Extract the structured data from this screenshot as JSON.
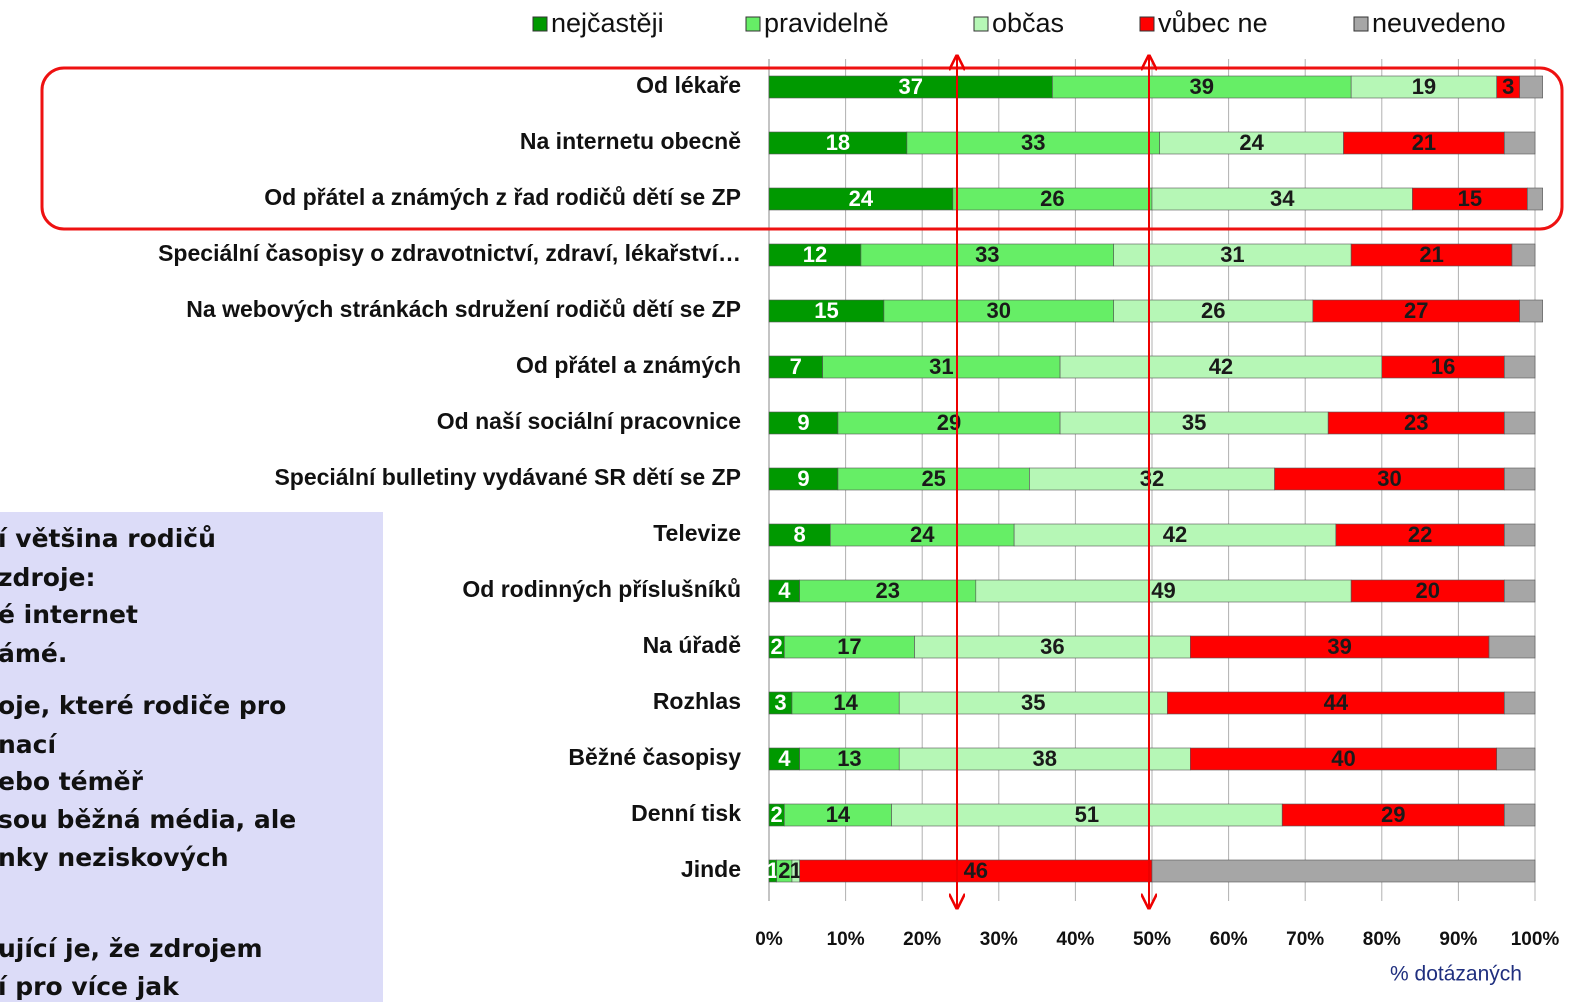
{
  "chart_data": {
    "type": "bar",
    "orientation": "horizontal",
    "stacked": true,
    "categories": [
      "Od lékaře",
      "Na internetu obecně",
      "Od přátel a známých z řad rodičů dětí se ZP",
      "Speciální časopisy o zdravotnictví, zdraví, lékařství…",
      "Na webových stránkách sdružení rodičů dětí se ZP",
      "Od přátel a známých",
      "Od naší sociální pracovnice",
      "Speciální bulletiny vydávané SR dětí se ZP",
      "Televize",
      "Od rodinných příslušníků",
      "Na úřadě",
      "Rozhlas",
      "Běžné časopisy",
      "Denní tisk",
      "Jinde"
    ],
    "series": [
      {
        "name": "nejčastěji",
        "color": "#009900",
        "label_color": "#ffffff",
        "data_labels": true,
        "values": [
          37,
          18,
          24,
          12,
          15,
          7,
          9,
          9,
          8,
          4,
          2,
          3,
          4,
          2,
          1
        ]
      },
      {
        "name": "pravidelně",
        "color": "#66ee66",
        "label_color": "#1a1a1a",
        "data_labels": true,
        "values": [
          39,
          33,
          26,
          33,
          30,
          31,
          29,
          25,
          24,
          23,
          17,
          14,
          13,
          14,
          2
        ]
      },
      {
        "name": "občas",
        "color": "#b6f7b6",
        "label_color": "#1a1a1a",
        "data_labels": true,
        "values": [
          19,
          24,
          34,
          31,
          26,
          42,
          35,
          32,
          42,
          49,
          36,
          35,
          38,
          51,
          1
        ]
      },
      {
        "name": "vůbec ne",
        "color": "#ff0000",
        "label_color": "#1a1a1a",
        "data_labels": true,
        "values": [
          3,
          21,
          15,
          21,
          27,
          16,
          23,
          30,
          22,
          20,
          39,
          44,
          40,
          29,
          46
        ]
      },
      {
        "name": "neuvedeno",
        "color": "#a6a6a6",
        "label_color": "#1a1a1a",
        "data_labels": false,
        "values": [
          3,
          4,
          2,
          3,
          3,
          4,
          4,
          4,
          4,
          4,
          6,
          4,
          5,
          4,
          50
        ]
      }
    ],
    "xlim": [
      0,
      100
    ],
    "xticks": [
      {
        "value": 0,
        "label": "0%"
      },
      {
        "value": 10,
        "label": "10%"
      },
      {
        "value": 20,
        "label": "20%"
      },
      {
        "value": 30,
        "label": "30%"
      },
      {
        "value": 40,
        "label": "40%"
      },
      {
        "value": 50,
        "label": "50%"
      },
      {
        "value": 60,
        "label": "60%"
      },
      {
        "value": 70,
        "label": "70%"
      },
      {
        "value": 80,
        "label": "80%"
      },
      {
        "value": 90,
        "label": "90%"
      },
      {
        "value": 100,
        "label": "100%"
      }
    ],
    "xlabel": "% dotázaných",
    "grid": true,
    "legend": "top"
  },
  "text_box": {
    "lines": [
      "í většina rodičů",
      " zdroje:",
      "é internet",
      "ámé.",
      "oje, které rodiče pro",
      "nací",
      "ebo téměř",
      "sou běžná média, ale",
      "nky neziskových",
      "ující je, že zdrojem",
      "í pro více jak"
    ]
  }
}
